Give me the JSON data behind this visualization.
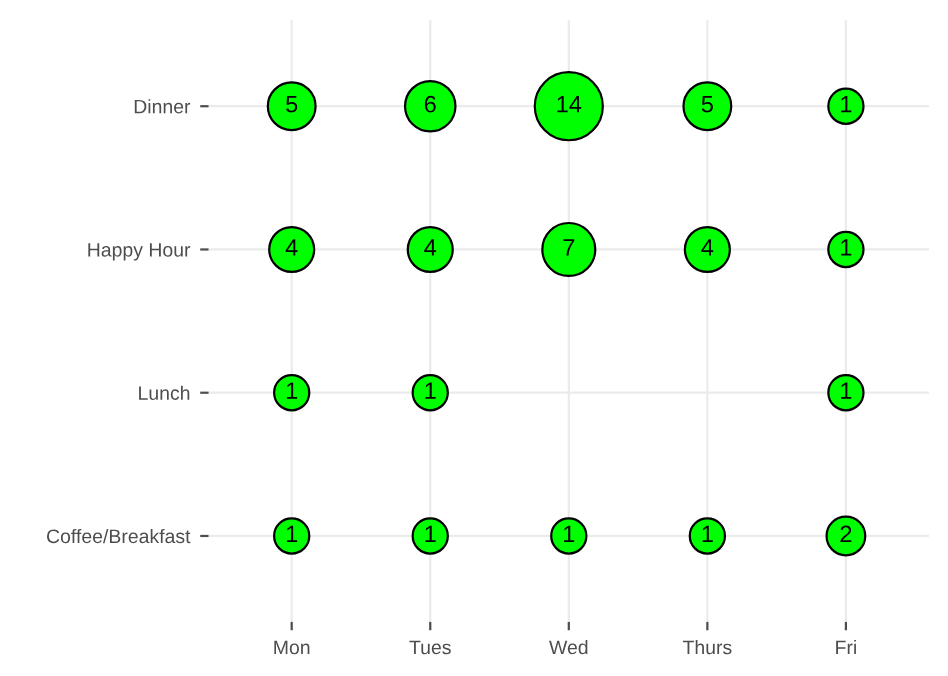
{
  "chart_data": {
    "type": "heatmap",
    "categories": [
      "Mon",
      "Tues",
      "Wed",
      "Thurs",
      "Fri"
    ],
    "y_categories": [
      "Dinner",
      "Happy Hour",
      "Lunch",
      "Coffee/Breakfast"
    ],
    "cells": [
      [
        5,
        6,
        14,
        5,
        1
      ],
      [
        4,
        4,
        7,
        4,
        1
      ],
      [
        1,
        1,
        null,
        null,
        1
      ],
      [
        1,
        1,
        1,
        1,
        2
      ]
    ],
    "color": "#00ff00",
    "data_labels": true,
    "grid": true
  }
}
